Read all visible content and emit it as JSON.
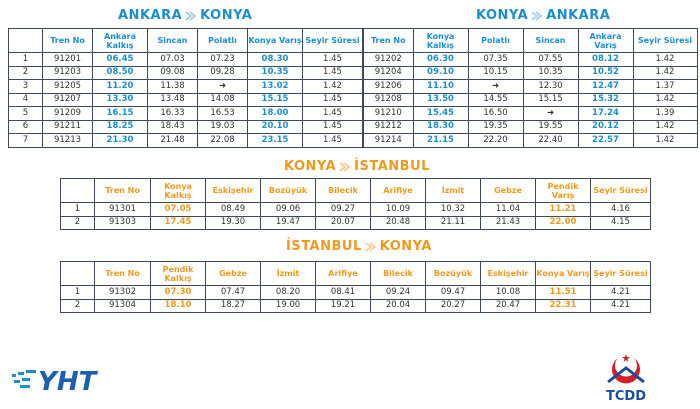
{
  "ankara_konya": {
    "title_from": "ANKARA",
    "title_to": "KONYA",
    "headers": [
      "Tren No",
      "Ankara Kalkış",
      "Sincan",
      "Polatlı",
      "Konya Varış",
      "Seyir Süresi"
    ],
    "rows": [
      [
        "1",
        "91201",
        "06.45",
        "07.03",
        "07.23",
        "08.30",
        "1.45"
      ],
      [
        "2",
        "91203",
        "08.50",
        "09.08",
        "09.28",
        "10.35",
        "1.45"
      ],
      [
        "3",
        "91205",
        "11.20",
        "11.38",
        "➜",
        "13.02",
        "1.42"
      ],
      [
        "4",
        "91207",
        "13.30",
        "13.48",
        "14.08",
        "15.15",
        "1.45"
      ],
      [
        "5",
        "91209",
        "16.15",
        "16.33",
        "16.53",
        "18.00",
        "1.45"
      ],
      [
        "6",
        "91211",
        "18.25",
        "18.43",
        "19.03",
        "20.10",
        "1.45"
      ],
      [
        "7",
        "91213",
        "21.30",
        "21.48",
        "22.08",
        "23.15",
        "1.45"
      ]
    ]
  },
  "konya_ankara": {
    "title_from": "KONYA",
    "title_to": "ANKARA",
    "headers": [
      "Tren No",
      "Konya Kalkış",
      "Polatlı",
      "Sincan",
      "Ankara Varış",
      "Seyir Süresi"
    ],
    "rows": [
      [
        "91202",
        "06.30",
        "07.35",
        "07.55",
        "08.12",
        "1.42"
      ],
      [
        "91204",
        "09.10",
        "10.15",
        "10.35",
        "10.52",
        "1.42"
      ],
      [
        "91206",
        "11.10",
        "➜",
        "12.30",
        "12.47",
        "1.37"
      ],
      [
        "91208",
        "13.50",
        "14.55",
        "15.15",
        "15.32",
        "1.42"
      ],
      [
        "91210",
        "15.45",
        "16.50",
        "➜",
        "17.24",
        "1.39"
      ],
      [
        "91212",
        "18.30",
        "19.35",
        "19.55",
        "20.12",
        "1.42"
      ],
      [
        "91214",
        "21.15",
        "22.20",
        "22.40",
        "22.57",
        "1.42"
      ]
    ]
  },
  "konya_istanbul": {
    "title_from": "KONYA",
    "title_to": "İSTANBUL",
    "headers": [
      "Tren No",
      "Konya Kalkış",
      "Eskişehir",
      "Bozüyük",
      "Bilecik",
      "Arifiye",
      "İzmit",
      "Gebze",
      "Pendik Varış",
      "Seyir Süresi"
    ],
    "rows": [
      [
        "1",
        "91301",
        "07.05",
        "08.49",
        "09.06",
        "09.27",
        "10.09",
        "10.32",
        "11.04",
        "11.21",
        "4.16"
      ],
      [
        "2",
        "91303",
        "17.45",
        "19.30",
        "19.47",
        "20.07",
        "20.48",
        "21.11",
        "21.43",
        "22.00",
        "4.15"
      ]
    ]
  },
  "istanbul_konya": {
    "title_from": "İSTANBUL",
    "title_to": "KONYA",
    "headers": [
      "Tren No",
      "Pendik Kalkış",
      "Gebze",
      "İzmit",
      "Arifiye",
      "Bilecik",
      "Bozüyük",
      "Eskişehir",
      "Konya Varış",
      "Seyir Süresi"
    ],
    "rows": [
      [
        "1",
        "91302",
        "07.30",
        "07.47",
        "08.20",
        "08.41",
        "09.24",
        "09.47",
        "10.08",
        "11.51",
        "4.21"
      ],
      [
        "2",
        "91304",
        "18.10",
        "18.27",
        "19.00",
        "19.21",
        "20.04",
        "20.27",
        "20.47",
        "22.31",
        "4.21"
      ]
    ]
  },
  "logos": {
    "left": "YHT",
    "right": "TCDD"
  }
}
